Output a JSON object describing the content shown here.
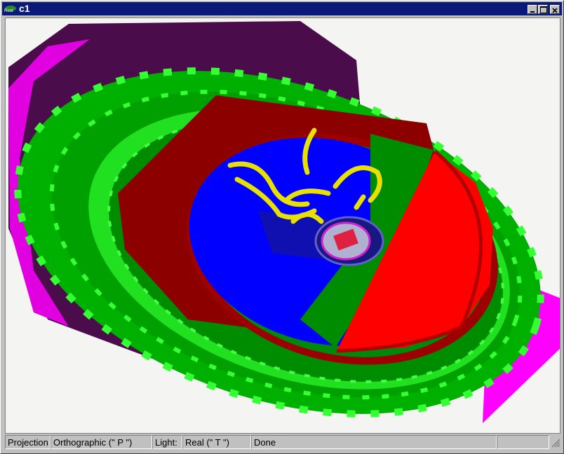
{
  "window": {
    "title": "c1",
    "icon_label": "Root"
  },
  "status_bar": {
    "fields": [
      "Projection",
      "Orthographic (\" P \")",
      "Light:",
      "Real (\" T \")",
      "Done"
    ]
  }
}
